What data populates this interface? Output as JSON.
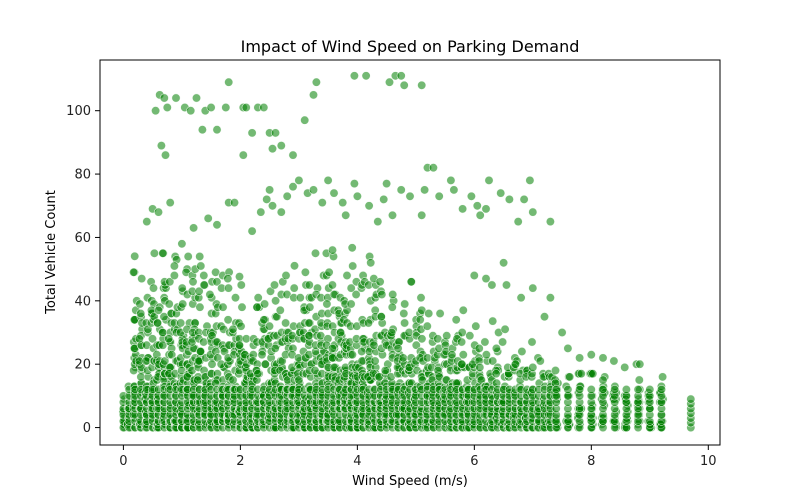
{
  "chart_data": {
    "type": "scatter",
    "title": "Impact of Wind Speed on Parking Demand",
    "xlabel": "Wind Speed (m/s)",
    "ylabel": "Total Vehicle Count",
    "xlim": [
      -0.4,
      10.2
    ],
    "ylim": [
      -5.5,
      116
    ],
    "xticks": [
      0,
      2,
      4,
      6,
      8,
      10
    ],
    "yticks": [
      0,
      20,
      40,
      60,
      80,
      100
    ],
    "grid": false,
    "marker_color": "#008000",
    "marker_opacity": 0.55,
    "outliers": [
      [
        0.55,
        100
      ],
      [
        0.62,
        105
      ],
      [
        0.7,
        104
      ],
      [
        0.75,
        101
      ],
      [
        0.65,
        89
      ],
      [
        0.72,
        86
      ],
      [
        0.9,
        104
      ],
      [
        1.05,
        101
      ],
      [
        1.15,
        100
      ],
      [
        1.25,
        104
      ],
      [
        1.35,
        94
      ],
      [
        1.4,
        100
      ],
      [
        1.5,
        101
      ],
      [
        1.6,
        94
      ],
      [
        1.75,
        101
      ],
      [
        1.8,
        109
      ],
      [
        2.05,
        101
      ],
      [
        2.1,
        101
      ],
      [
        2.2,
        93
      ],
      [
        2.3,
        101
      ],
      [
        2.4,
        101
      ],
      [
        2.5,
        93
      ],
      [
        2.55,
        88
      ],
      [
        2.6,
        93
      ],
      [
        2.7,
        89
      ],
      [
        2.9,
        86
      ],
      [
        3.1,
        97
      ],
      [
        3.25,
        105
      ],
      [
        3.3,
        109
      ],
      [
        3.95,
        111
      ],
      [
        4.15,
        111
      ],
      [
        4.55,
        109
      ],
      [
        4.65,
        111
      ],
      [
        4.75,
        111
      ],
      [
        4.8,
        108
      ],
      [
        5.1,
        108
      ],
      [
        2.05,
        86
      ],
      [
        0.4,
        65
      ],
      [
        0.5,
        69
      ],
      [
        0.6,
        68
      ],
      [
        0.8,
        71
      ],
      [
        1.0,
        58
      ],
      [
        1.2,
        63
      ],
      [
        1.45,
        66
      ],
      [
        1.6,
        64
      ],
      [
        1.8,
        71
      ],
      [
        1.9,
        71
      ],
      [
        2.2,
        62
      ],
      [
        2.35,
        68
      ],
      [
        2.45,
        72
      ],
      [
        2.5,
        75
      ],
      [
        2.55,
        70
      ],
      [
        2.7,
        68
      ],
      [
        2.8,
        73
      ],
      [
        2.9,
        76
      ],
      [
        3.0,
        78
      ],
      [
        3.15,
        74
      ],
      [
        3.25,
        75
      ],
      [
        3.4,
        71
      ],
      [
        3.5,
        78
      ],
      [
        3.6,
        74
      ],
      [
        3.75,
        71
      ],
      [
        3.8,
        67
      ],
      [
        3.95,
        77
      ],
      [
        4.0,
        73
      ],
      [
        4.2,
        70
      ],
      [
        4.35,
        65
      ],
      [
        4.45,
        72
      ],
      [
        4.5,
        77
      ],
      [
        4.6,
        67
      ],
      [
        4.75,
        75
      ],
      [
        4.9,
        73
      ],
      [
        5.1,
        67
      ],
      [
        5.15,
        75
      ],
      [
        5.2,
        82
      ],
      [
        5.3,
        82
      ],
      [
        5.4,
        73
      ],
      [
        5.6,
        78
      ],
      [
        5.65,
        75
      ],
      [
        5.8,
        69
      ],
      [
        5.95,
        73
      ],
      [
        6.05,
        70
      ],
      [
        6.1,
        67
      ],
      [
        6.2,
        69
      ],
      [
        6.25,
        78
      ],
      [
        6.45,
        74
      ],
      [
        6.6,
        72
      ],
      [
        6.75,
        65
      ],
      [
        6.85,
        72
      ],
      [
        6.95,
        78
      ],
      [
        7.0,
        68
      ],
      [
        7.3,
        65
      ],
      [
        6.0,
        48
      ],
      [
        6.2,
        47
      ],
      [
        6.3,
        45
      ],
      [
        6.5,
        52
      ],
      [
        6.55,
        45
      ],
      [
        6.8,
        41
      ],
      [
        7.0,
        44
      ],
      [
        7.2,
        35
      ],
      [
        7.3,
        41
      ],
      [
        7.5,
        30
      ],
      [
        7.6,
        25
      ],
      [
        7.8,
        22
      ],
      [
        8.0,
        23
      ],
      [
        8.2,
        22
      ]
    ]
  }
}
